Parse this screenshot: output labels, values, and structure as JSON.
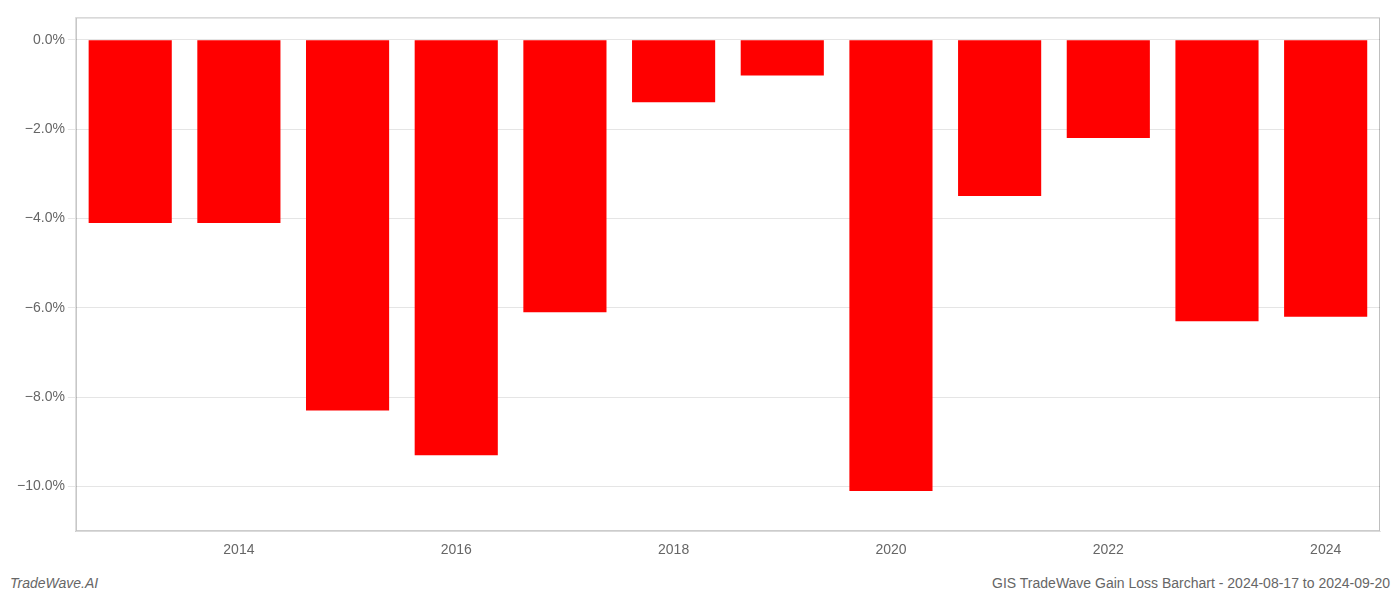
{
  "chart_data": {
    "type": "bar",
    "categories": [
      null,
      "2014",
      null,
      "2016",
      null,
      "2018",
      null,
      "2020",
      null,
      "2022",
      null,
      "2024"
    ],
    "values": [
      -4.1,
      -4.1,
      -8.3,
      -9.3,
      -6.1,
      -1.4,
      -0.8,
      -10.1,
      -3.5,
      -2.2,
      -6.3,
      -6.2
    ],
    "color": "#ff0000",
    "ylim": [
      -11.0,
      0.5
    ],
    "yticks": [
      {
        "value": 0.0,
        "label": "0.0%"
      },
      {
        "value": -2.0,
        "label": "−2.0%"
      },
      {
        "value": -4.0,
        "label": "−4.0%"
      },
      {
        "value": -6.0,
        "label": "−6.0%"
      },
      {
        "value": -8.0,
        "label": "−8.0%"
      },
      {
        "value": -10.0,
        "label": "−10.0%"
      }
    ],
    "grid": true,
    "annotations": [
      "TradeWave.AI",
      "GIS TradeWave Gain Loss Barchart - 2024-08-17 to 2024-09-20"
    ]
  }
}
